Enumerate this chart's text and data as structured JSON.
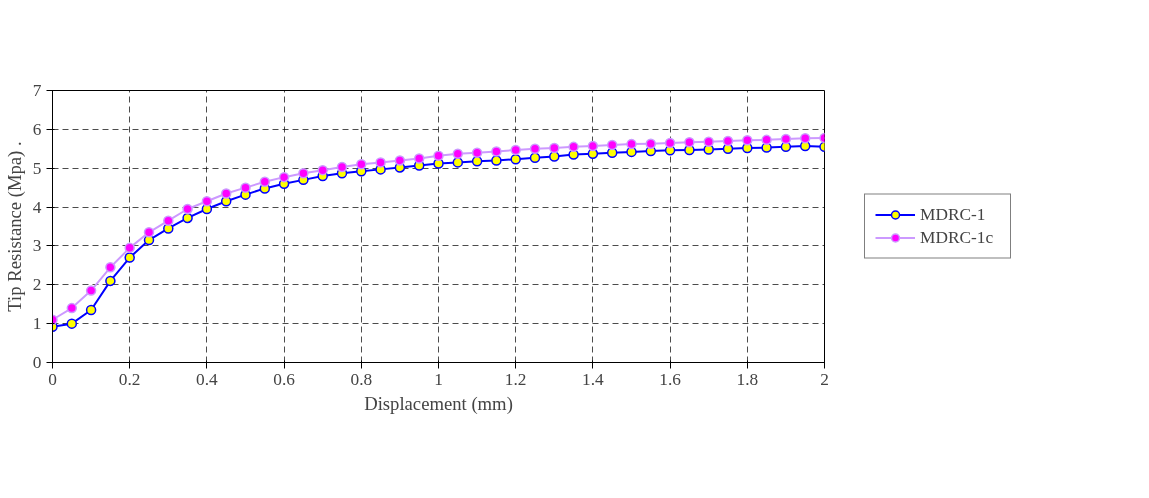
{
  "chart_data": {
    "type": "line",
    "xlabel": "Displacement (mm)",
    "ylabel": "Tip Resistance (Mpa) .",
    "x": [
      0,
      0.05,
      0.1,
      0.15,
      0.2,
      0.25,
      0.3,
      0.35,
      0.4,
      0.45,
      0.5,
      0.55,
      0.6,
      0.65,
      0.7,
      0.75,
      0.8,
      0.85,
      0.9,
      0.95,
      1.0,
      1.05,
      1.1,
      1.15,
      1.2,
      1.25,
      1.3,
      1.35,
      1.4,
      1.45,
      1.5,
      1.55,
      1.6,
      1.65,
      1.7,
      1.75,
      1.8,
      1.85,
      1.9,
      1.95,
      2.0
    ],
    "series": [
      {
        "name": "MDRC-1",
        "color": "#0000ff",
        "values": [
          0.92,
          1.0,
          1.35,
          2.1,
          2.7,
          3.15,
          3.45,
          3.72,
          3.95,
          4.15,
          4.32,
          4.48,
          4.6,
          4.7,
          4.8,
          4.87,
          4.92,
          4.97,
          5.02,
          5.07,
          5.12,
          5.15,
          5.18,
          5.2,
          5.23,
          5.27,
          5.3,
          5.35,
          5.37,
          5.4,
          5.42,
          5.44,
          5.46,
          5.47,
          5.48,
          5.5,
          5.52,
          5.53,
          5.55,
          5.57,
          5.55
        ]
      },
      {
        "name": "MDRC-1c",
        "color": "#cc99ff",
        "values": [
          1.1,
          1.4,
          1.85,
          2.45,
          2.95,
          3.35,
          3.65,
          3.95,
          4.15,
          4.35,
          4.5,
          4.65,
          4.77,
          4.87,
          4.95,
          5.03,
          5.1,
          5.15,
          5.2,
          5.25,
          5.32,
          5.37,
          5.4,
          5.43,
          5.47,
          5.5,
          5.52,
          5.55,
          5.57,
          5.6,
          5.62,
          5.63,
          5.65,
          5.67,
          5.68,
          5.7,
          5.72,
          5.73,
          5.75,
          5.77,
          5.78
        ]
      }
    ],
    "xlim": [
      0,
      2
    ],
    "xticks": [
      0,
      0.2,
      0.4,
      0.6,
      0.8,
      1,
      1.2,
      1.4,
      1.6,
      1.8,
      2
    ],
    "ylim": [
      0,
      7
    ],
    "yticks": [
      0,
      1,
      2,
      3,
      4,
      5,
      6,
      7
    ],
    "grid": true,
    "legend": "right",
    "marker": "circle",
    "line_style": "solid"
  }
}
